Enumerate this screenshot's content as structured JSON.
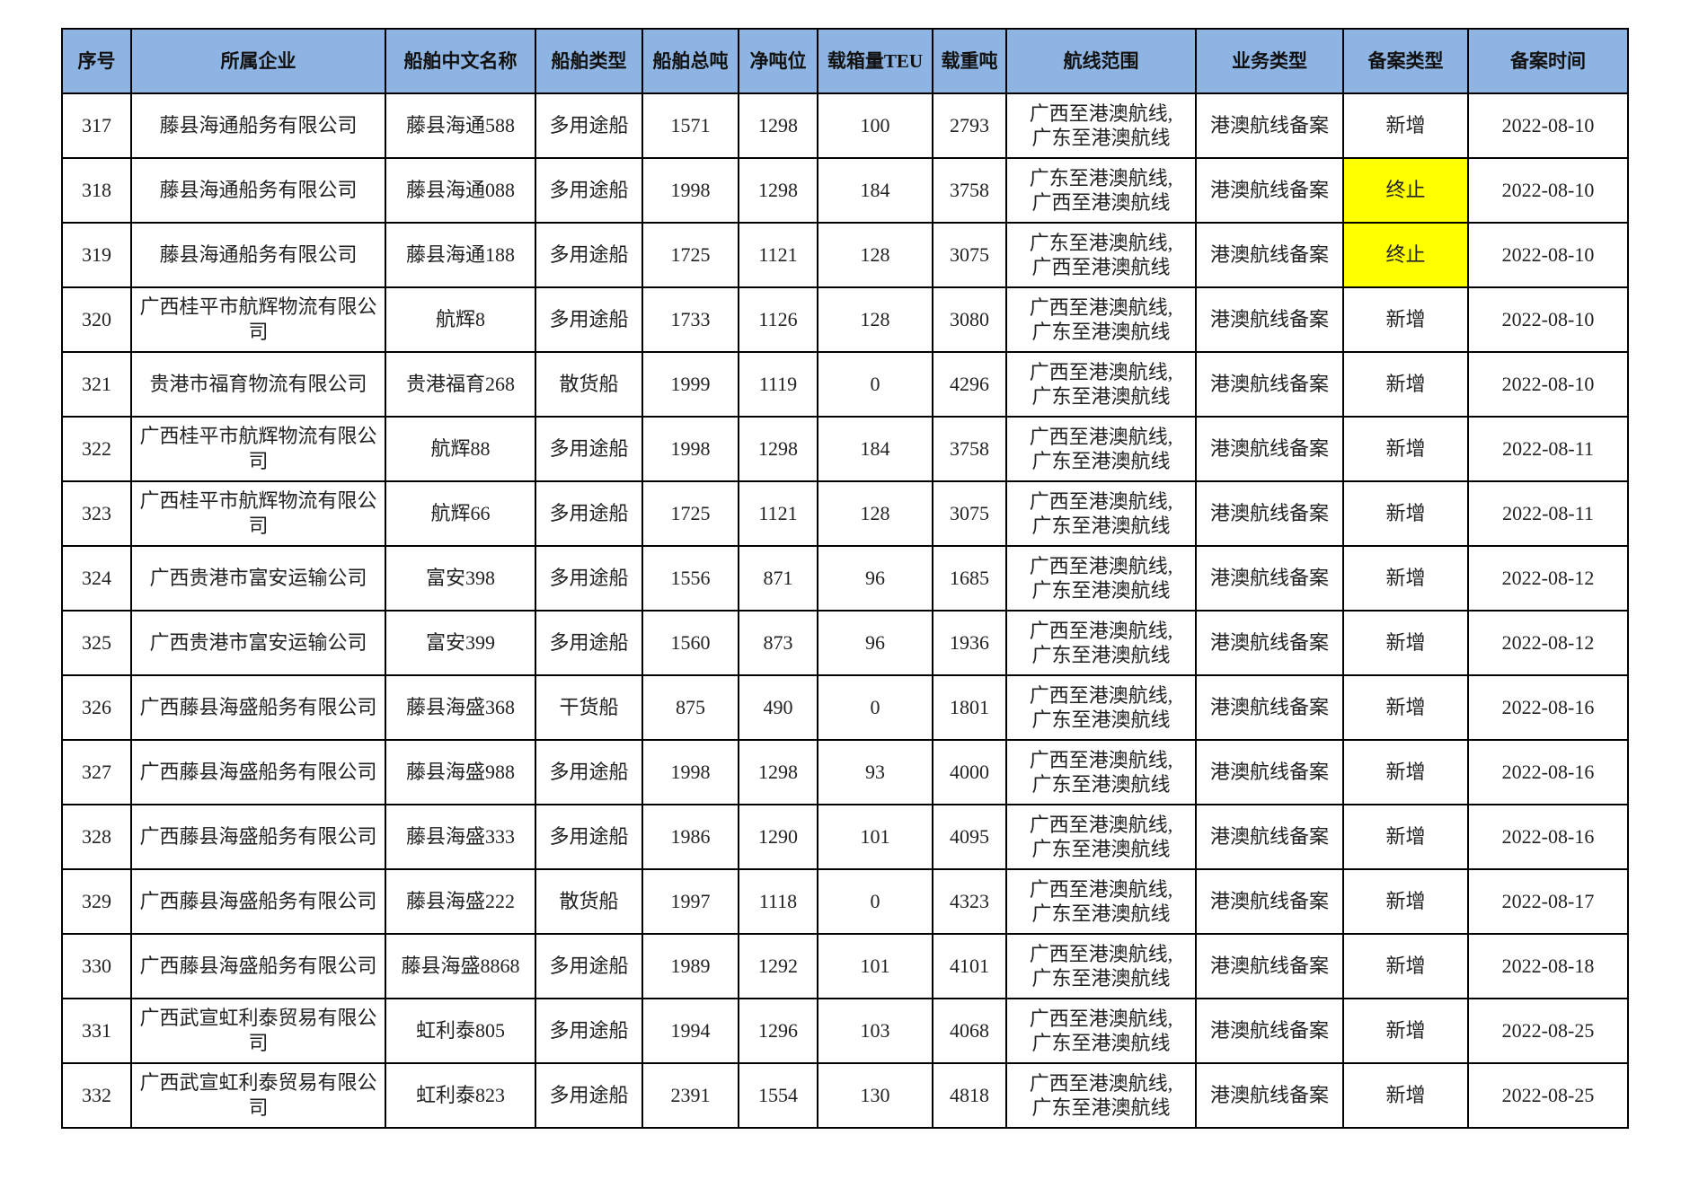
{
  "columns": [
    "序号",
    "所属企业",
    "船舶中文名称",
    "船舶类型",
    "船舶总吨",
    "净吨位",
    "载箱量TEU",
    "载重吨",
    "航线范围",
    "业务类型",
    "备案类型",
    "备案时间"
  ],
  "highlight_color": "#ffff00",
  "header_color": "#8db4e2",
  "rows": [
    {
      "no": "317",
      "company": "藤县海通船务有限公司",
      "ship": "藤县海通588",
      "type": "多用途船",
      "gt": "1571",
      "nt": "1298",
      "teu": "100",
      "dwt": "2793",
      "route1": "广西至港澳航线,",
      "route2": "广东至港澳航线",
      "biz": "港澳航线备案",
      "record": "新增",
      "date": "2022-08-10",
      "highlight": false
    },
    {
      "no": "318",
      "company": "藤县海通船务有限公司",
      "ship": "藤县海通088",
      "type": "多用途船",
      "gt": "1998",
      "nt": "1298",
      "teu": "184",
      "dwt": "3758",
      "route1": "广东至港澳航线,",
      "route2": "广西至港澳航线",
      "biz": "港澳航线备案",
      "record": "终止",
      "date": "2022-08-10",
      "highlight": true
    },
    {
      "no": "319",
      "company": "藤县海通船务有限公司",
      "ship": "藤县海通188",
      "type": "多用途船",
      "gt": "1725",
      "nt": "1121",
      "teu": "128",
      "dwt": "3075",
      "route1": "广东至港澳航线,",
      "route2": "广西至港澳航线",
      "biz": "港澳航线备案",
      "record": "终止",
      "date": "2022-08-10",
      "highlight": true
    },
    {
      "no": "320",
      "company": "广西桂平市航辉物流有限公司",
      "ship": "航辉8",
      "type": "多用途船",
      "gt": "1733",
      "nt": "1126",
      "teu": "128",
      "dwt": "3080",
      "route1": "广西至港澳航线,",
      "route2": "广东至港澳航线",
      "biz": "港澳航线备案",
      "record": "新增",
      "date": "2022-08-10",
      "highlight": false
    },
    {
      "no": "321",
      "company": "贵港市福育物流有限公司",
      "ship": "贵港福育268",
      "type": "散货船",
      "gt": "1999",
      "nt": "1119",
      "teu": "0",
      "dwt": "4296",
      "route1": "广西至港澳航线,",
      "route2": "广东至港澳航线",
      "biz": "港澳航线备案",
      "record": "新增",
      "date": "2022-08-10",
      "highlight": false
    },
    {
      "no": "322",
      "company": "广西桂平市航辉物流有限公司",
      "ship": "航辉88",
      "type": "多用途船",
      "gt": "1998",
      "nt": "1298",
      "teu": "184",
      "dwt": "3758",
      "route1": "广西至港澳航线,",
      "route2": "广东至港澳航线",
      "biz": "港澳航线备案",
      "record": "新增",
      "date": "2022-08-11",
      "highlight": false
    },
    {
      "no": "323",
      "company": "广西桂平市航辉物流有限公司",
      "ship": "航辉66",
      "type": "多用途船",
      "gt": "1725",
      "nt": "1121",
      "teu": "128",
      "dwt": "3075",
      "route1": "广西至港澳航线,",
      "route2": "广东至港澳航线",
      "biz": "港澳航线备案",
      "record": "新增",
      "date": "2022-08-11",
      "highlight": false
    },
    {
      "no": "324",
      "company": "广西贵港市富安运输公司",
      "ship": "富安398",
      "type": "多用途船",
      "gt": "1556",
      "nt": "871",
      "teu": "96",
      "dwt": "1685",
      "route1": "广西至港澳航线,",
      "route2": "广东至港澳航线",
      "biz": "港澳航线备案",
      "record": "新增",
      "date": "2022-08-12",
      "highlight": false
    },
    {
      "no": "325",
      "company": "广西贵港市富安运输公司",
      "ship": "富安399",
      "type": "多用途船",
      "gt": "1560",
      "nt": "873",
      "teu": "96",
      "dwt": "1936",
      "route1": "广西至港澳航线,",
      "route2": "广东至港澳航线",
      "biz": "港澳航线备案",
      "record": "新增",
      "date": "2022-08-12",
      "highlight": false
    },
    {
      "no": "326",
      "company": "广西藤县海盛船务有限公司",
      "ship": "藤县海盛368",
      "type": "干货船",
      "gt": "875",
      "nt": "490",
      "teu": "0",
      "dwt": "1801",
      "route1": "广西至港澳航线,",
      "route2": "广东至港澳航线",
      "biz": "港澳航线备案",
      "record": "新增",
      "date": "2022-08-16",
      "highlight": false
    },
    {
      "no": "327",
      "company": "广西藤县海盛船务有限公司",
      "ship": "藤县海盛988",
      "type": "多用途船",
      "gt": "1998",
      "nt": "1298",
      "teu": "93",
      "dwt": "4000",
      "route1": "广西至港澳航线,",
      "route2": "广东至港澳航线",
      "biz": "港澳航线备案",
      "record": "新增",
      "date": "2022-08-16",
      "highlight": false
    },
    {
      "no": "328",
      "company": "广西藤县海盛船务有限公司",
      "ship": "藤县海盛333",
      "type": "多用途船",
      "gt": "1986",
      "nt": "1290",
      "teu": "101",
      "dwt": "4095",
      "route1": "广西至港澳航线,",
      "route2": "广东至港澳航线",
      "biz": "港澳航线备案",
      "record": "新增",
      "date": "2022-08-16",
      "highlight": false
    },
    {
      "no": "329",
      "company": "广西藤县海盛船务有限公司",
      "ship": "藤县海盛222",
      "type": "散货船",
      "gt": "1997",
      "nt": "1118",
      "teu": "0",
      "dwt": "4323",
      "route1": "广西至港澳航线,",
      "route2": "广东至港澳航线",
      "biz": "港澳航线备案",
      "record": "新增",
      "date": "2022-08-17",
      "highlight": false
    },
    {
      "no": "330",
      "company": "广西藤县海盛船务有限公司",
      "ship": "藤县海盛8868",
      "type": "多用途船",
      "gt": "1989",
      "nt": "1292",
      "teu": "101",
      "dwt": "4101",
      "route1": "广西至港澳航线,",
      "route2": "广东至港澳航线",
      "biz": "港澳航线备案",
      "record": "新增",
      "date": "2022-08-18",
      "highlight": false
    },
    {
      "no": "331",
      "company": "广西武宣虹利泰贸易有限公司",
      "ship": "虹利泰805",
      "type": "多用途船",
      "gt": "1994",
      "nt": "1296",
      "teu": "103",
      "dwt": "4068",
      "route1": "广西至港澳航线,",
      "route2": "广东至港澳航线",
      "biz": "港澳航线备案",
      "record": "新增",
      "date": "2022-08-25",
      "highlight": false
    },
    {
      "no": "332",
      "company": "广西武宣虹利泰贸易有限公司",
      "ship": "虹利泰823",
      "type": "多用途船",
      "gt": "2391",
      "nt": "1554",
      "teu": "130",
      "dwt": "4818",
      "route1": "广西至港澳航线,",
      "route2": "广东至港澳航线",
      "biz": "港澳航线备案",
      "record": "新增",
      "date": "2022-08-25",
      "highlight": false
    }
  ]
}
